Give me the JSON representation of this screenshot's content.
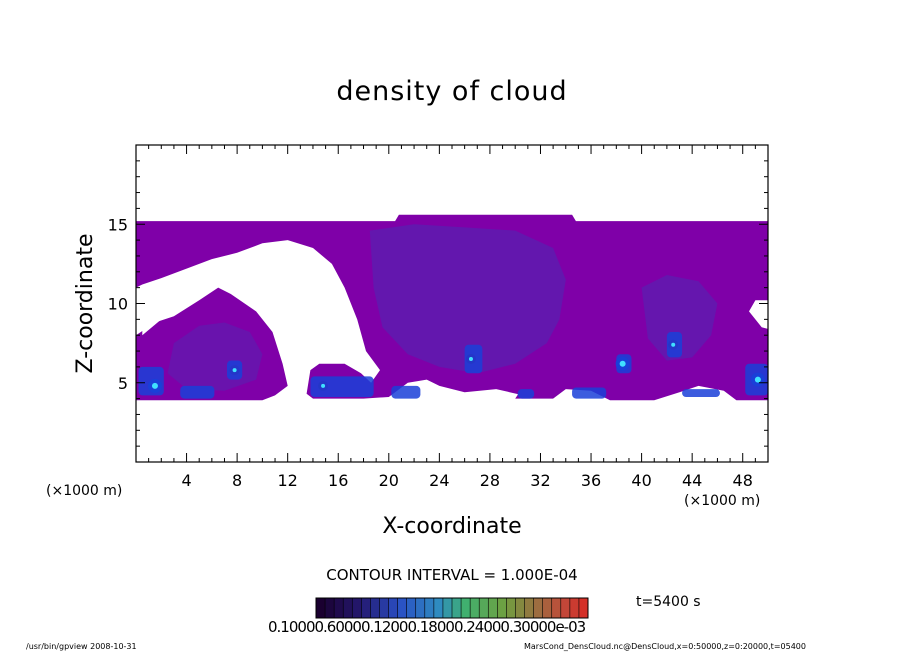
{
  "chart_data": {
    "type": "heatmap",
    "title": "density of cloud",
    "xlabel": "X-coordinate",
    "ylabel": "Z-coordinate",
    "x_unit": "(×1000 m)",
    "y_unit": "(×1000 m)",
    "xlim": [
      0,
      50
    ],
    "ylim": [
      0,
      20
    ],
    "x_ticks": [
      4,
      8,
      12,
      16,
      20,
      24,
      28,
      32,
      36,
      40,
      44,
      48
    ],
    "y_ticks": [
      5,
      10,
      15
    ],
    "contour_interval": "CONTOUR INTERVAL = 1.000E-04",
    "time_label": "t=5400 s",
    "colorbar_labels": "0.10000.60000.12000.18000.24000.30000e-03",
    "colors": {
      "base": "#7f00a8",
      "mid": "#5a1fb0",
      "high": "#1a3fd8",
      "peak": "#40e0ff"
    },
    "cloud_regions": [
      {
        "x": [
          0,
          50
        ],
        "z": [
          12.2,
          15.2
        ],
        "level": "low"
      },
      {
        "x": [
          0,
          10
        ],
        "z": [
          3.8,
          11.0
        ],
        "level": "low"
      },
      {
        "x": [
          14,
          38
        ],
        "z": [
          3.8,
          15.6
        ],
        "level": "medium"
      },
      {
        "x": [
          38,
          50
        ],
        "z": [
          3.8,
          15.0
        ],
        "level": "medium"
      }
    ],
    "peaks": [
      {
        "x": 1.5,
        "z": 4.8,
        "level": "peak"
      },
      {
        "x": 7.8,
        "z": 5.8,
        "level": "high"
      },
      {
        "x": 14.8,
        "z": 4.8,
        "level": "high"
      },
      {
        "x": 26.5,
        "z": 6.5,
        "level": "high"
      },
      {
        "x": 38.5,
        "z": 6.2,
        "level": "peak"
      },
      {
        "x": 42.5,
        "z": 7.4,
        "level": "high"
      },
      {
        "x": 49.2,
        "z": 5.2,
        "level": "peak"
      }
    ]
  },
  "footer": {
    "left": "/usr/bin/gpview   2008-10-31",
    "right": "MarsCond_DensCloud.nc@DensCloud,x=0:50000,z=0:20000,t=05400"
  }
}
